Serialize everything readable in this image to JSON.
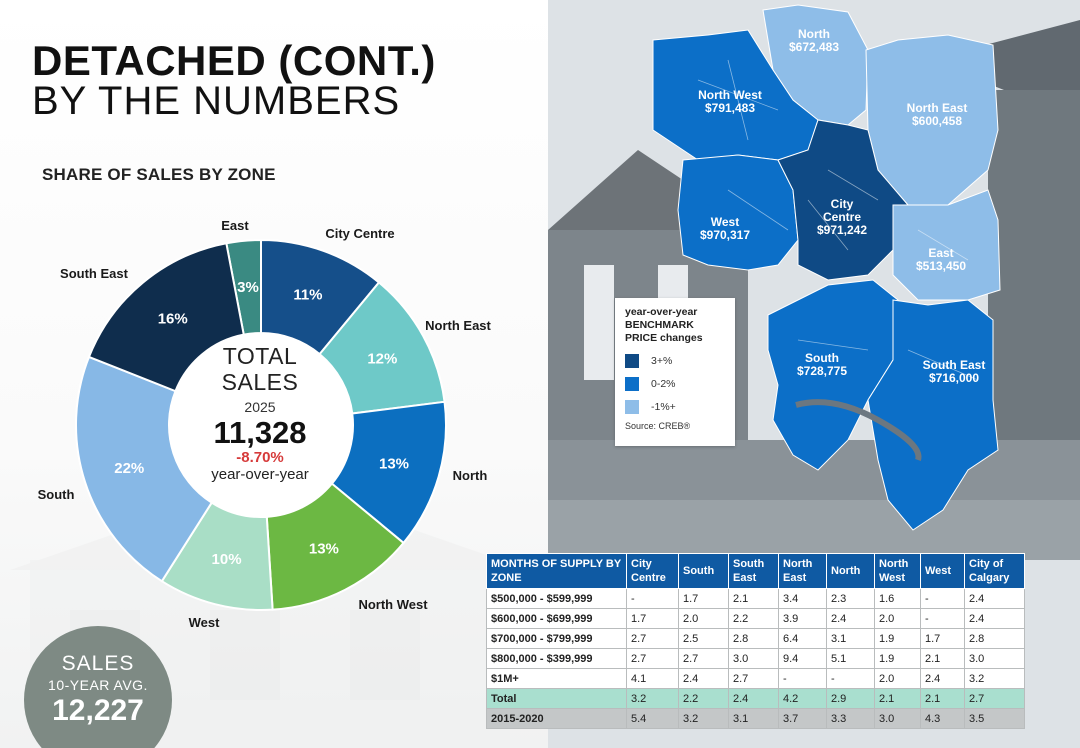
{
  "header": {
    "title_bold": "DETACHED (CONT.)",
    "title_light": "BY THE NUMBERS",
    "section_title": "SHARE OF SALES BY ZONE"
  },
  "colors": {
    "city_centre": "#154f8a",
    "north_east": "#6ec9c8",
    "north": "#0c6fc0",
    "north_west": "#6cb843",
    "west": "#a9dec6",
    "south": "#87b8e6",
    "south_east": "#0f2d4d",
    "east": "#3a8a82",
    "map_dark": "#0f4a85",
    "map_mid": "#0c6fc8",
    "map_light": "#8ebde8",
    "red": "#d63a3a"
  },
  "chart_data": {
    "type": "pie",
    "title": "SHARE OF SALES BY ZONE",
    "start_category": "East",
    "categories": [
      "East",
      "City Centre",
      "North East",
      "North",
      "North West",
      "West",
      "South",
      "South East"
    ],
    "values": [
      3,
      11,
      12,
      13,
      13,
      10,
      22,
      16
    ],
    "labels": [
      "3%",
      "11%",
      "12%",
      "13%",
      "13%",
      "10%",
      "22%",
      "16%"
    ],
    "unit": "%"
  },
  "center": {
    "label_line1": "TOTAL",
    "label_line2": "SALES",
    "year": "2025",
    "value": "11,328",
    "change": "-8.70%",
    "change_label": "year-over-year"
  },
  "avg_badge": {
    "line1": "SALES",
    "line2": "10-YEAR AVG.",
    "value": "12,227"
  },
  "map": {
    "zones": [
      {
        "name": "North",
        "price": "$672,483"
      },
      {
        "name": "North West",
        "price": "$791,483"
      },
      {
        "name": "North East",
        "price": "$600,458"
      },
      {
        "name": "West",
        "price": "$970,317"
      },
      {
        "name": "City\nCentre",
        "price": "$971,242"
      },
      {
        "name": "East",
        "price": "$513,450"
      },
      {
        "name": "South",
        "price": "$728,775"
      },
      {
        "name": "South East",
        "price": "$716,000"
      }
    ],
    "legend": {
      "title": "year-over-year BENCHMARK PRICE changes",
      "items": [
        {
          "label": "3+%",
          "color": "#0f4a85"
        },
        {
          "label": "0-2%",
          "color": "#0c6fc8"
        },
        {
          "label": "-1%+",
          "color": "#8ebde8"
        }
      ],
      "source": "Source: CREB®"
    }
  },
  "supply_table": {
    "header_title": "MONTHS OF SUPPLY BY ZONE",
    "columns": [
      "City Centre",
      "South",
      "South East",
      "North East",
      "North",
      "North West",
      "West",
      "City of Calgary"
    ],
    "rows": [
      {
        "label": "$500,000 - $599,999",
        "values": [
          "-",
          "1.7",
          "2.1",
          "3.4",
          "2.3",
          "1.6",
          "-",
          "2.4"
        ]
      },
      {
        "label": "$600,000 - $699,999",
        "values": [
          "1.7",
          "2.0",
          "2.2",
          "3.9",
          "2.4",
          "2.0",
          "-",
          "2.4"
        ]
      },
      {
        "label": "$700,000 - $799,999",
        "values": [
          "2.7",
          "2.5",
          "2.8",
          "6.4",
          "3.1",
          "1.9",
          "1.7",
          "2.8"
        ]
      },
      {
        "label": "$800,000 - $399,999",
        "values": [
          "2.7",
          "2.7",
          "3.0",
          "9.4",
          "5.1",
          "1.9",
          "2.1",
          "3.0"
        ]
      },
      {
        "label": "$1M+",
        "values": [
          "4.1",
          "2.4",
          "2.7",
          "-",
          "-",
          "2.0",
          "2.4",
          "3.2"
        ]
      },
      {
        "label": "Total",
        "values": [
          "3.2",
          "2.2",
          "2.4",
          "4.2",
          "2.9",
          "2.1",
          "2.1",
          "2.7"
        ]
      },
      {
        "label": "2015-2020",
        "values": [
          "5.4",
          "3.2",
          "3.1",
          "3.7",
          "3.3",
          "3.0",
          "4.3",
          "3.5"
        ]
      }
    ]
  }
}
